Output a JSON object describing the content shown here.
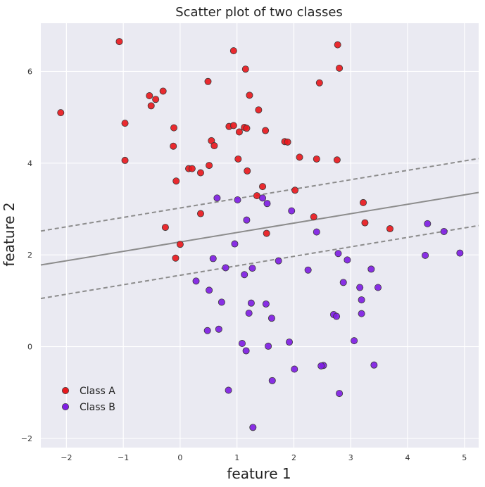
{
  "chart_data": {
    "type": "scatter",
    "title": "Scatter plot of two classes",
    "xlabel": "feature 1",
    "ylabel": "feature 2",
    "xlim": [
      -2.45,
      5.25
    ],
    "ylim": [
      -2.2,
      7.05
    ],
    "xticks": [
      -2,
      -1,
      0,
      1,
      2,
      3,
      4,
      5
    ],
    "yticks": [
      -2,
      0,
      2,
      4,
      6
    ],
    "grid": true,
    "legend_position": "lower-left",
    "background": "#eaeaf2",
    "series": [
      {
        "name": "Class A",
        "color": "#e8191e",
        "points": [
          [
            -1.07,
            6.65
          ],
          [
            0.94,
            6.45
          ],
          [
            2.77,
            6.58
          ],
          [
            1.15,
            6.05
          ],
          [
            2.8,
            6.07
          ],
          [
            0.49,
            5.78
          ],
          [
            2.45,
            5.75
          ],
          [
            -0.3,
            5.57
          ],
          [
            -0.54,
            5.47
          ],
          [
            1.22,
            5.48
          ],
          [
            -0.43,
            5.39
          ],
          [
            -0.51,
            5.25
          ],
          [
            1.38,
            5.16
          ],
          [
            -2.1,
            5.1
          ],
          [
            -0.97,
            4.87
          ],
          [
            0.86,
            4.8
          ],
          [
            0.94,
            4.82
          ],
          [
            1.13,
            4.78
          ],
          [
            1.17,
            4.76
          ],
          [
            -0.11,
            4.77
          ],
          [
            1.5,
            4.71
          ],
          [
            1.04,
            4.68
          ],
          [
            0.55,
            4.49
          ],
          [
            1.84,
            4.47
          ],
          [
            1.89,
            4.46
          ],
          [
            0.6,
            4.38
          ],
          [
            -0.12,
            4.37
          ],
          [
            2.1,
            4.13
          ],
          [
            2.4,
            4.09
          ],
          [
            1.02,
            4.09
          ],
          [
            2.76,
            4.07
          ],
          [
            -0.97,
            4.06
          ],
          [
            0.51,
            3.95
          ],
          [
            0.15,
            3.88
          ],
          [
            0.21,
            3.88
          ],
          [
            1.18,
            3.83
          ],
          [
            0.36,
            3.79
          ],
          [
            -0.07,
            3.61
          ],
          [
            1.45,
            3.49
          ],
          [
            2.02,
            3.41
          ],
          [
            1.35,
            3.29
          ],
          [
            3.22,
            3.14
          ],
          [
            0.36,
            2.9
          ],
          [
            2.35,
            2.83
          ],
          [
            3.25,
            2.7
          ],
          [
            -0.26,
            2.6
          ],
          [
            3.69,
            2.57
          ],
          [
            1.52,
            2.47
          ],
          [
            0.0,
            2.23
          ],
          [
            -0.08,
            1.93
          ]
        ]
      },
      {
        "name": "Class B",
        "color": "#7f1ee3",
        "points": [
          [
            0.65,
            3.24
          ],
          [
            1.45,
            3.24
          ],
          [
            1.01,
            3.2
          ],
          [
            1.53,
            3.12
          ],
          [
            1.96,
            2.96
          ],
          [
            1.17,
            2.76
          ],
          [
            4.35,
            2.68
          ],
          [
            4.64,
            2.51
          ],
          [
            2.4,
            2.5
          ],
          [
            0.96,
            2.24
          ],
          [
            4.92,
            2.04
          ],
          [
            2.78,
            2.03
          ],
          [
            4.31,
            1.99
          ],
          [
            0.58,
            1.92
          ],
          [
            2.94,
            1.89
          ],
          [
            1.73,
            1.87
          ],
          [
            0.8,
            1.72
          ],
          [
            1.27,
            1.71
          ],
          [
            3.36,
            1.69
          ],
          [
            2.25,
            1.67
          ],
          [
            1.13,
            1.57
          ],
          [
            0.28,
            1.43
          ],
          [
            2.87,
            1.4
          ],
          [
            3.48,
            1.29
          ],
          [
            3.16,
            1.29
          ],
          [
            0.51,
            1.23
          ],
          [
            3.19,
            1.02
          ],
          [
            0.73,
            0.97
          ],
          [
            1.25,
            0.95
          ],
          [
            1.51,
            0.93
          ],
          [
            1.21,
            0.73
          ],
          [
            3.19,
            0.72
          ],
          [
            2.7,
            0.7
          ],
          [
            2.75,
            0.66
          ],
          [
            1.61,
            0.62
          ],
          [
            0.68,
            0.38
          ],
          [
            0.48,
            0.35
          ],
          [
            3.06,
            0.13
          ],
          [
            1.92,
            0.1
          ],
          [
            1.09,
            0.07
          ],
          [
            1.55,
            0.01
          ],
          [
            1.16,
            -0.09
          ],
          [
            2.01,
            -0.49
          ],
          [
            3.41,
            -0.4
          ],
          [
            2.52,
            -0.41
          ],
          [
            2.48,
            -0.42
          ],
          [
            1.62,
            -0.74
          ],
          [
            0.85,
            -0.95
          ],
          [
            2.8,
            -1.02
          ],
          [
            1.28,
            -1.76
          ]
        ]
      }
    ],
    "decision_lines": [
      {
        "style": "solid",
        "color": "#8c8c8c",
        "x": [
          -2.45,
          5.25
        ],
        "y": [
          1.78,
          3.36
        ]
      },
      {
        "style": "dashed",
        "color": "#8c8c8c",
        "x": [
          -2.45,
          5.25
        ],
        "y": [
          2.52,
          4.1
        ]
      },
      {
        "style": "dashed",
        "color": "#8c8c8c",
        "x": [
          -2.45,
          5.25
        ],
        "y": [
          1.05,
          2.64
        ]
      }
    ]
  }
}
